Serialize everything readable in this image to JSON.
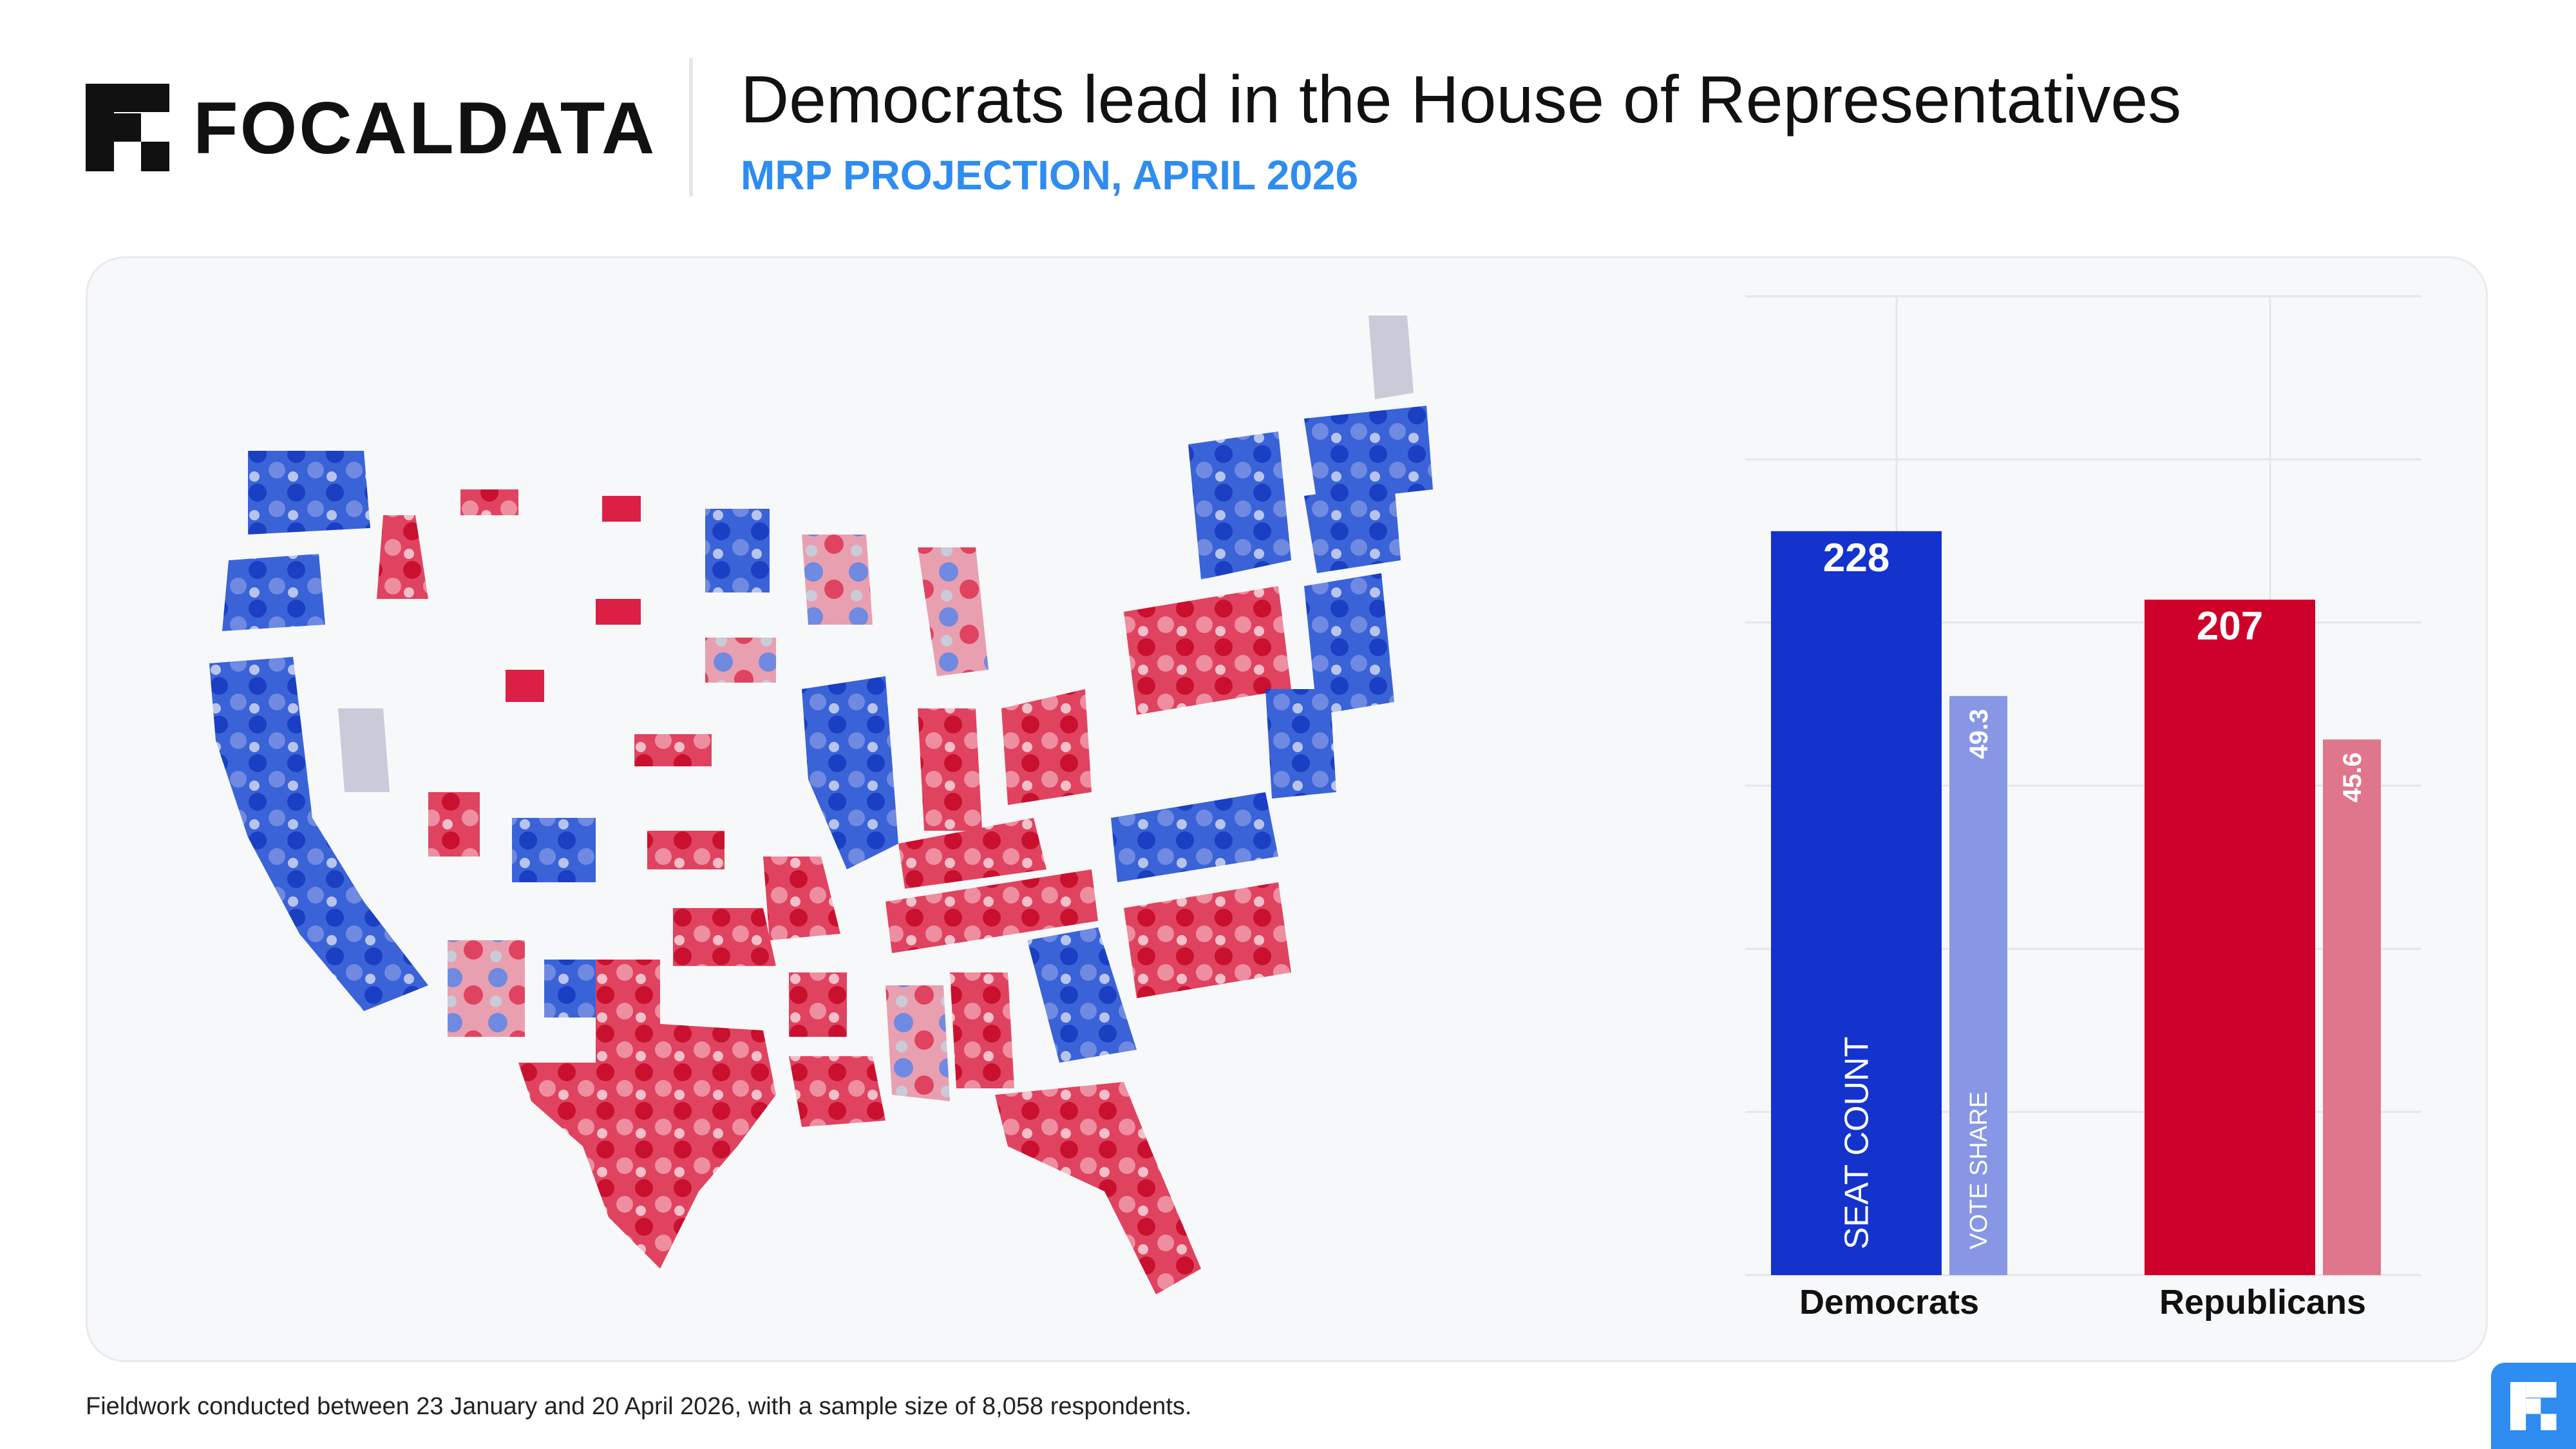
{
  "header": {
    "brand": "FOCALDATA",
    "title": "Democrats lead in the House of Representatives",
    "subtitle": "MRP PROJECTION, APRIL 2026"
  },
  "footnote": "Fieldwork conducted between 23 January and 20 April 2026, with a sample size of 8,058 respondents.",
  "colors": {
    "dem_seat": "#1333cc",
    "dem_vote": "#8797e6",
    "rep_seat": "#cc0029",
    "rep_vote": "#e0768c",
    "accent": "#2f8cf0"
  },
  "chart_data": {
    "type": "bar",
    "categories": [
      "Democrats",
      "Republicans"
    ],
    "series": [
      {
        "name": "SEAT COUNT",
        "values": [
          228,
          207
        ]
      },
      {
        "name": "VOTE SHARE",
        "values": [
          49.3,
          45.6
        ]
      }
    ],
    "ylim": [
      0,
      300
    ],
    "grid": true
  }
}
